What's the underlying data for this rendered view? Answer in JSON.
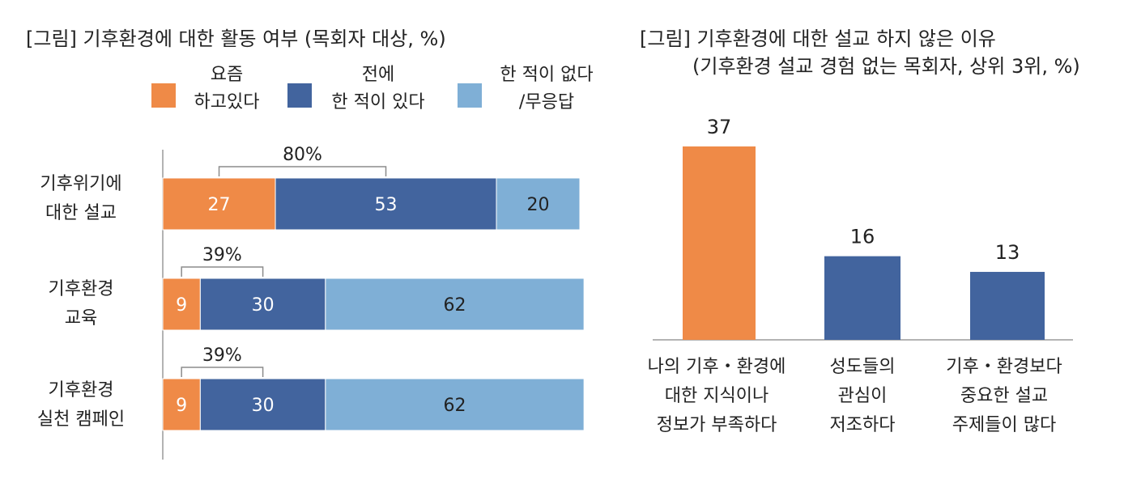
{
  "colors": {
    "recent": "#ef8a47",
    "past": "#42649e",
    "never": "#7fafd6",
    "axis": "#9a9a9a",
    "bracket": "#8c8c8c"
  },
  "left": {
    "title": "[그림] 기후환경에 대한 활동 여부 (목회자 대상, %)",
    "legend": [
      {
        "label": "요즘\n하고있다",
        "color_key": "recent"
      },
      {
        "label": "전에\n한 적이 있다",
        "color_key": "past"
      },
      {
        "label": "한 적이 없다\n/무응답",
        "color_key": "never"
      }
    ],
    "categories": [
      "기후위기에\n대한 설교",
      "기후환경\n교육",
      "기후환경\n실천 캠페인"
    ]
  },
  "right": {
    "title": "[그림] 기후환경에 대한 설교 하지 않은 이유",
    "subtitle": "(기후환경 설교 경험 없는 목회자, 상위 3위, %)",
    "categories": [
      "나의 기후・환경에\n대한 지식이나\n정보가 부족하다",
      "성도들의\n관심이\n저조하다",
      "기후・환경보다\n중요한 설교\n주제들이 많다"
    ]
  },
  "chart_data": [
    {
      "type": "bar",
      "orientation": "horizontal",
      "stacked": true,
      "title": "[그림] 기후환경에 대한 활동 여부 (목회자 대상, %)",
      "categories": [
        "기후위기에 대한 설교",
        "기후환경 교육",
        "기후환경 실천 캠페인"
      ],
      "series": [
        {
          "name": "요즘 하고있다",
          "values": [
            27,
            9,
            9
          ]
        },
        {
          "name": "전에 한 적이 있다",
          "values": [
            53,
            30,
            30
          ]
        },
        {
          "name": "한 적이 없다/무응답",
          "values": [
            20,
            62,
            62
          ]
        }
      ],
      "totals_bracket": [
        "80%",
        "39%",
        "39%"
      ],
      "xlim": [
        0,
        100
      ],
      "legend_position": "top"
    },
    {
      "type": "bar",
      "orientation": "vertical",
      "title": "[그림] 기후환경에 대한 설교 하지 않은 이유",
      "subtitle": "(기후환경 설교 경험 없는 목회자, 상위 3위, %)",
      "categories": [
        "나의 기후・환경에 대한 지식이나 정보가 부족하다",
        "성도들의 관심이 저조하다",
        "기후・환경보다 중요한 설교 주제들이 많다"
      ],
      "values": [
        37,
        16,
        13
      ],
      "value_labels": [
        "37",
        "16",
        "13"
      ],
      "highlight_index": 0,
      "ylim": [
        0,
        40
      ]
    }
  ]
}
